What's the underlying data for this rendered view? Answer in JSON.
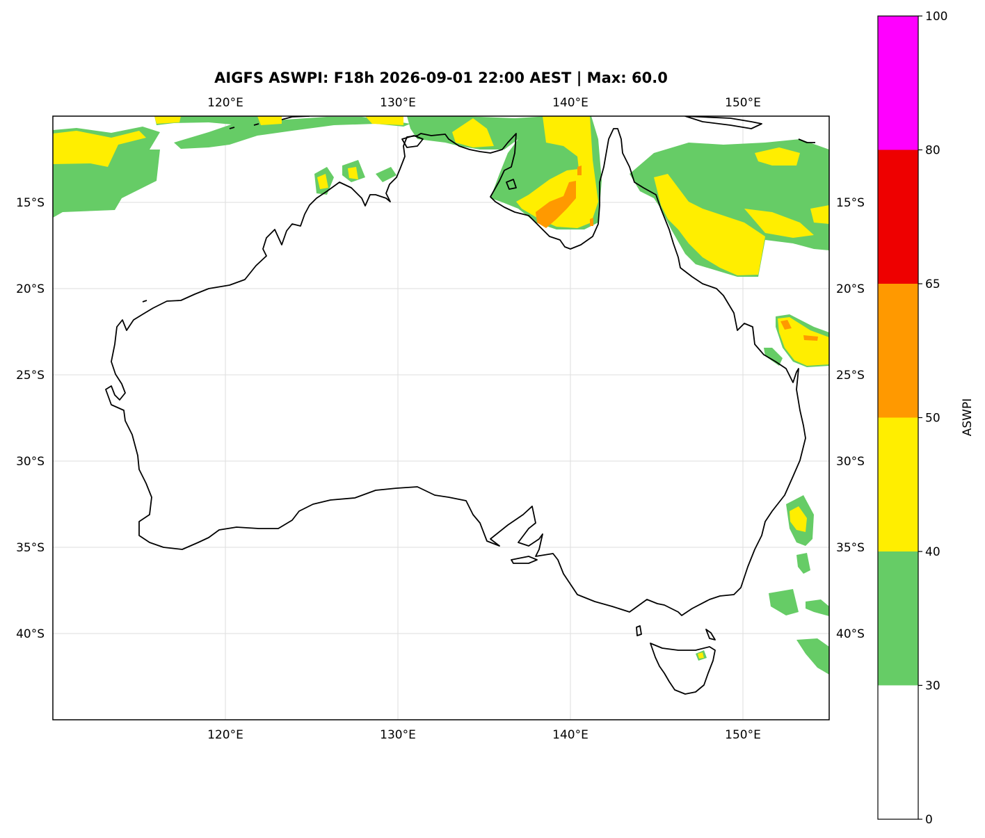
{
  "title": "AIGFS ASWPI: F18h 2026-09-01 22:00 AEST | Max: 60.0",
  "map": {
    "lon_range": [
      110,
      155
    ],
    "lat_range": [
      -45,
      -10
    ],
    "lon_ticks": [
      {
        "value": 120,
        "label": "120°E"
      },
      {
        "value": 130,
        "label": "130°E"
      },
      {
        "value": 140,
        "label": "140°E"
      },
      {
        "value": 150,
        "label": "150°E"
      }
    ],
    "lat_ticks": [
      {
        "value": -15,
        "label": "15°S"
      },
      {
        "value": -20,
        "label": "20°S"
      },
      {
        "value": -25,
        "label": "25°S"
      },
      {
        "value": -30,
        "label": "30°S"
      },
      {
        "value": -35,
        "label": "35°S"
      },
      {
        "value": -40,
        "label": "40°S"
      }
    ],
    "gridlines": true,
    "coastline_color": "#000000"
  },
  "colorbar": {
    "label": "ASWPI",
    "orientation": "vertical",
    "placement": "right",
    "levels": [
      {
        "value": 0,
        "label": "0"
      },
      {
        "value": 30,
        "label": "30"
      },
      {
        "value": 40,
        "label": "40"
      },
      {
        "value": 50,
        "label": "50"
      },
      {
        "value": 65,
        "label": "65"
      },
      {
        "value": 80,
        "label": "80"
      },
      {
        "value": 100,
        "label": "100"
      }
    ],
    "colors": [
      "#ffffff",
      "#66cc66",
      "#ffee00",
      "#ff9900",
      "#ee0000",
      "#ff00ff"
    ]
  },
  "fill_colors": {
    "band_30_40": "#66cc66",
    "band_40_50": "#ffee00",
    "band_50_65": "#ff9900"
  }
}
